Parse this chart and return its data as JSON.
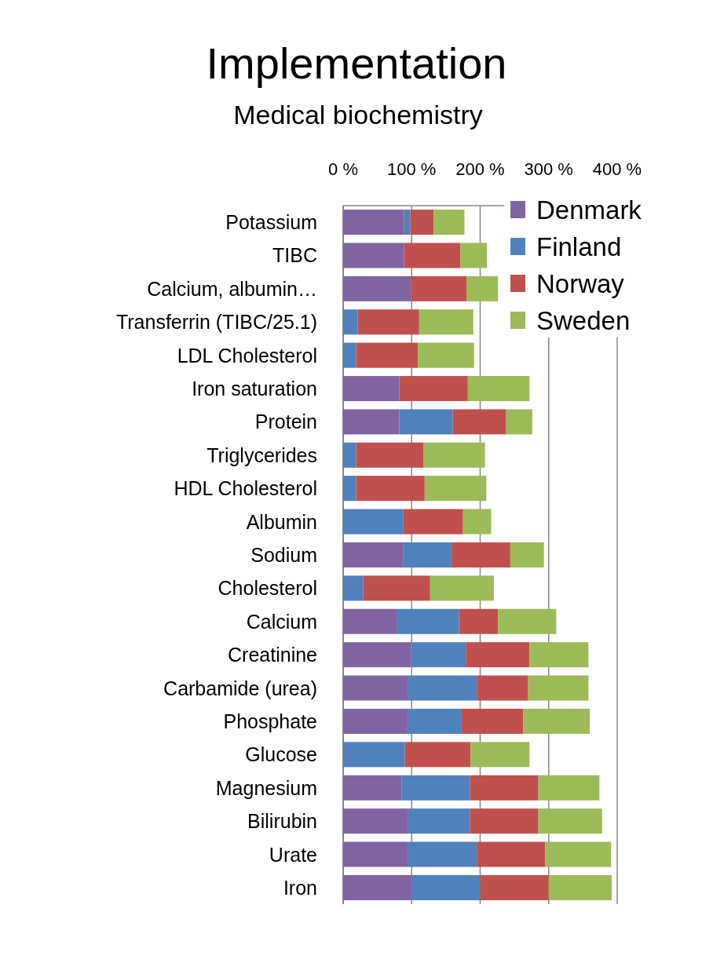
{
  "chart_data": {
    "type": "bar",
    "orientation": "horizontal",
    "stacked": true,
    "title": "Implementation",
    "subtitle": "Medical biochemistry",
    "categories": [
      "Potassium",
      "TIBC",
      "Calcium, albumin…",
      "Transferrin (TIBC/25.1)",
      "LDL Cholesterol",
      "Iron saturation",
      "Protein",
      "Triglycerides",
      "HDL Cholesterol",
      "Albumin",
      "Sodium",
      "Cholesterol",
      "Calcium",
      "Creatinine",
      "Carbamide (urea)",
      "Phosphate",
      "Glucose",
      "Magnesium",
      "Bilirubin",
      "Urate",
      "Iron"
    ],
    "series": [
      {
        "name": "Denmark",
        "color": "#8064a2",
        "values": [
          89,
          89,
          99,
          null,
          null,
          82,
          82,
          null,
          null,
          null,
          88,
          null,
          79,
          99,
          95,
          95,
          null,
          85,
          95,
          95,
          100
        ]
      },
      {
        "name": "Finland",
        "color": "#4f81bd",
        "values": [
          9,
          null,
          null,
          21,
          19,
          null,
          78,
          19,
          19,
          88,
          70,
          29,
          90,
          80,
          100,
          78,
          90,
          100,
          90,
          100,
          100
        ]
      },
      {
        "name": "Norway",
        "color": "#c0504d",
        "values": [
          34,
          82,
          81,
          90,
          90,
          100,
          78,
          98,
          100,
          87,
          86,
          98,
          57,
          93,
          75,
          90,
          96,
          100,
          100,
          100,
          100
        ]
      },
      {
        "name": "Sweden",
        "color": "#9bbb59",
        "values": [
          45,
          39,
          46,
          79,
          82,
          90,
          38,
          90,
          90,
          41,
          49,
          93,
          85,
          86,
          88,
          97,
          86,
          89,
          93,
          96,
          92
        ]
      }
    ],
    "xlim": [
      0,
      400
    ],
    "xticks": [
      {
        "value": 0,
        "label": "0 %"
      },
      {
        "value": 100,
        "label": "100 %"
      },
      {
        "value": 200,
        "label": "200 %"
      },
      {
        "value": 300,
        "label": "300 %"
      },
      {
        "value": 400,
        "label": "400 %"
      }
    ],
    "grid": "x",
    "legend": "top right"
  }
}
